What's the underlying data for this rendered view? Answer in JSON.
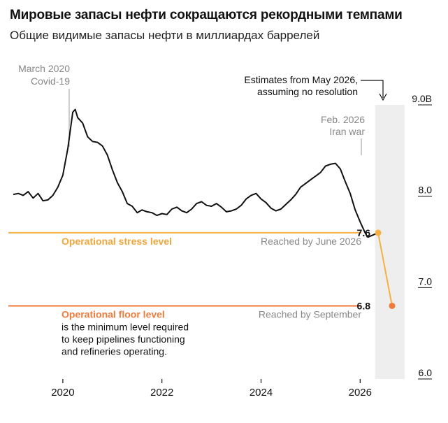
{
  "header": {
    "title": "Мировые запасы нефти сокращаются рекордными темпами",
    "subtitle": "Общие видимые запасы нефти в миллиардах баррелей"
  },
  "colors": {
    "line": "#111111",
    "stress": "#f5b041",
    "stress_text": "#f0a63a",
    "floor": "#f07a3a",
    "floor_text": "#f07a3a",
    "shade": "#eeeeee",
    "annotation_text": "#888888",
    "axis": "#111111"
  },
  "chart_data": {
    "type": "line",
    "x_axis": {
      "range": [
        2019.0,
        2026.9
      ],
      "tick_values": [
        2020,
        2022,
        2024,
        2026
      ],
      "tick_labels": [
        "2020",
        "2022",
        "2024",
        "2026"
      ]
    },
    "y_axis": {
      "range": [
        6.0,
        9.0
      ],
      "tick_values": [
        9.0,
        8.0,
        7.0,
        6.0
      ],
      "tick_labels": [
        "9.0B",
        "8.0",
        "7.0",
        "6.0"
      ],
      "position": "right"
    },
    "series": [
      {
        "kind": "actual",
        "x": [
          2019.0,
          2019.1,
          2019.2,
          2019.3,
          2019.4,
          2019.5,
          2019.6,
          2019.7,
          2019.8,
          2019.9,
          2020.0,
          2020.1,
          2020.2,
          2020.25,
          2020.3,
          2020.4,
          2020.5,
          2020.6,
          2020.7,
          2020.8,
          2020.9,
          2021.0,
          2021.1,
          2021.2,
          2021.3,
          2021.4,
          2021.5,
          2021.6,
          2021.7,
          2021.8,
          2021.9,
          2022.0,
          2022.1,
          2022.2,
          2022.3,
          2022.4,
          2022.5,
          2022.6,
          2022.7,
          2022.8,
          2022.9,
          2023.0,
          2023.1,
          2023.2,
          2023.3,
          2023.4,
          2023.5,
          2023.6,
          2023.7,
          2023.8,
          2023.9,
          2024.0,
          2024.1,
          2024.2,
          2024.3,
          2024.4,
          2024.5,
          2024.6,
          2024.7,
          2024.8,
          2024.9,
          2025.0,
          2025.1,
          2025.2,
          2025.3,
          2025.4,
          2025.5,
          2025.6,
          2025.7,
          2025.8,
          2025.9,
          2026.0,
          2026.1,
          2026.15
        ],
        "y": [
          8.02,
          8.03,
          8.01,
          8.05,
          7.98,
          8.03,
          7.95,
          7.96,
          8.01,
          8.1,
          8.23,
          8.52,
          8.92,
          8.95,
          8.86,
          8.8,
          8.65,
          8.6,
          8.59,
          8.55,
          8.45,
          8.29,
          8.15,
          8.05,
          7.92,
          7.89,
          7.82,
          7.85,
          7.83,
          7.82,
          7.79,
          7.81,
          7.8,
          7.86,
          7.88,
          7.84,
          7.82,
          7.86,
          7.92,
          7.94,
          7.9,
          7.89,
          7.92,
          7.88,
          7.83,
          7.84,
          7.86,
          7.9,
          7.97,
          8.01,
          8.03,
          7.97,
          7.93,
          7.87,
          7.84,
          7.86,
          7.91,
          7.96,
          8.02,
          8.1,
          8.14,
          8.18,
          8.22,
          8.26,
          8.33,
          8.35,
          8.36,
          8.3,
          8.16,
          8.03,
          7.85,
          7.72,
          7.6,
          7.55
        ]
      },
      {
        "kind": "estimate",
        "x": [
          2026.15,
          2026.3,
          2026.55,
          2026.72
        ],
        "y": [
          7.55,
          7.5,
          7.58,
          6.7
        ]
      }
    ],
    "reference_lines": [
      {
        "key": "stress",
        "value": 7.6,
        "label": "Operational stress level",
        "reached": "Reached by June 2026",
        "value_label": "7.6"
      },
      {
        "key": "floor",
        "value": 6.8,
        "label": "Operational floor level",
        "reached": "Reached by September",
        "value_label": "6.8",
        "description": [
          "is the minimum level required",
          "to keep pipelines functioning",
          "and refineries operating."
        ]
      }
    ],
    "annotations": [
      {
        "key": "covid",
        "x": 2020.15,
        "lines": [
          "March 2020",
          "Covid-19"
        ]
      },
      {
        "key": "iran",
        "x": 2026.1,
        "lines": [
          "Feb. 2026",
          "Iran war"
        ]
      },
      {
        "key": "estimates",
        "lines": [
          "Estimates from May 2026,",
          "assuming no resolution"
        ]
      }
    ],
    "shade_range": [
      2026.3,
      2026.9
    ],
    "grid": false,
    "legend": "none"
  }
}
